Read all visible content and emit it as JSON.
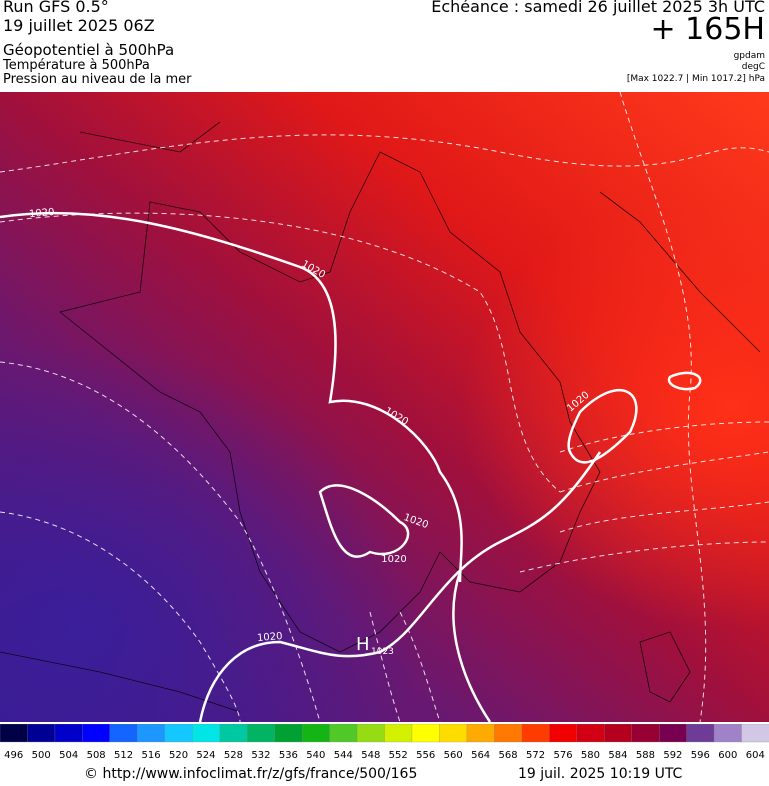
{
  "header": {
    "title": "Run GFS 0.5°",
    "run": "19 juillet 2025 06Z",
    "fields": [
      "Géopotentiel à 500hPa",
      "Température à 500hPa",
      "Pression au niveau de la mer"
    ],
    "echeance": "Echéance : samedi 26 juillet 2025 3h UTC",
    "offset": "+ 165H",
    "units": [
      "gpdam",
      "degC",
      "[Max 1022.7 | Min 1017.2] hPa"
    ]
  },
  "map": {
    "isobar_labels": [
      "1020",
      "1020",
      "1020",
      "1020",
      "1020",
      "1020",
      "1020"
    ],
    "high": {
      "symbol": "H",
      "value": "1023"
    }
  },
  "colorbar": {
    "labels": [
      496,
      500,
      504,
      508,
      512,
      516,
      520,
      524,
      528,
      532,
      536,
      540,
      544,
      548,
      552,
      556,
      560,
      564,
      568,
      572,
      576,
      580,
      584,
      588,
      592,
      596,
      600,
      604
    ],
    "colors": [
      "#000046",
      "#000096",
      "#0000c8",
      "#0000ff",
      "#1464ff",
      "#1e96ff",
      "#14c8ff",
      "#00e6e6",
      "#00c8a0",
      "#00b464",
      "#00a032",
      "#14b414",
      "#50c828",
      "#96dc14",
      "#d2f000",
      "#ffff00",
      "#ffdc00",
      "#ffaa00",
      "#ff7800",
      "#ff3c00",
      "#f00000",
      "#d20014",
      "#b4001e",
      "#960032",
      "#780050",
      "#6e3c96",
      "#a082c8",
      "#d2c8e6"
    ]
  },
  "footer": {
    "credit": "© http://www.infoclimat.fr/z/gfs/france/500/165",
    "timestamp": "19 juil. 2025 10:19 UTC"
  }
}
